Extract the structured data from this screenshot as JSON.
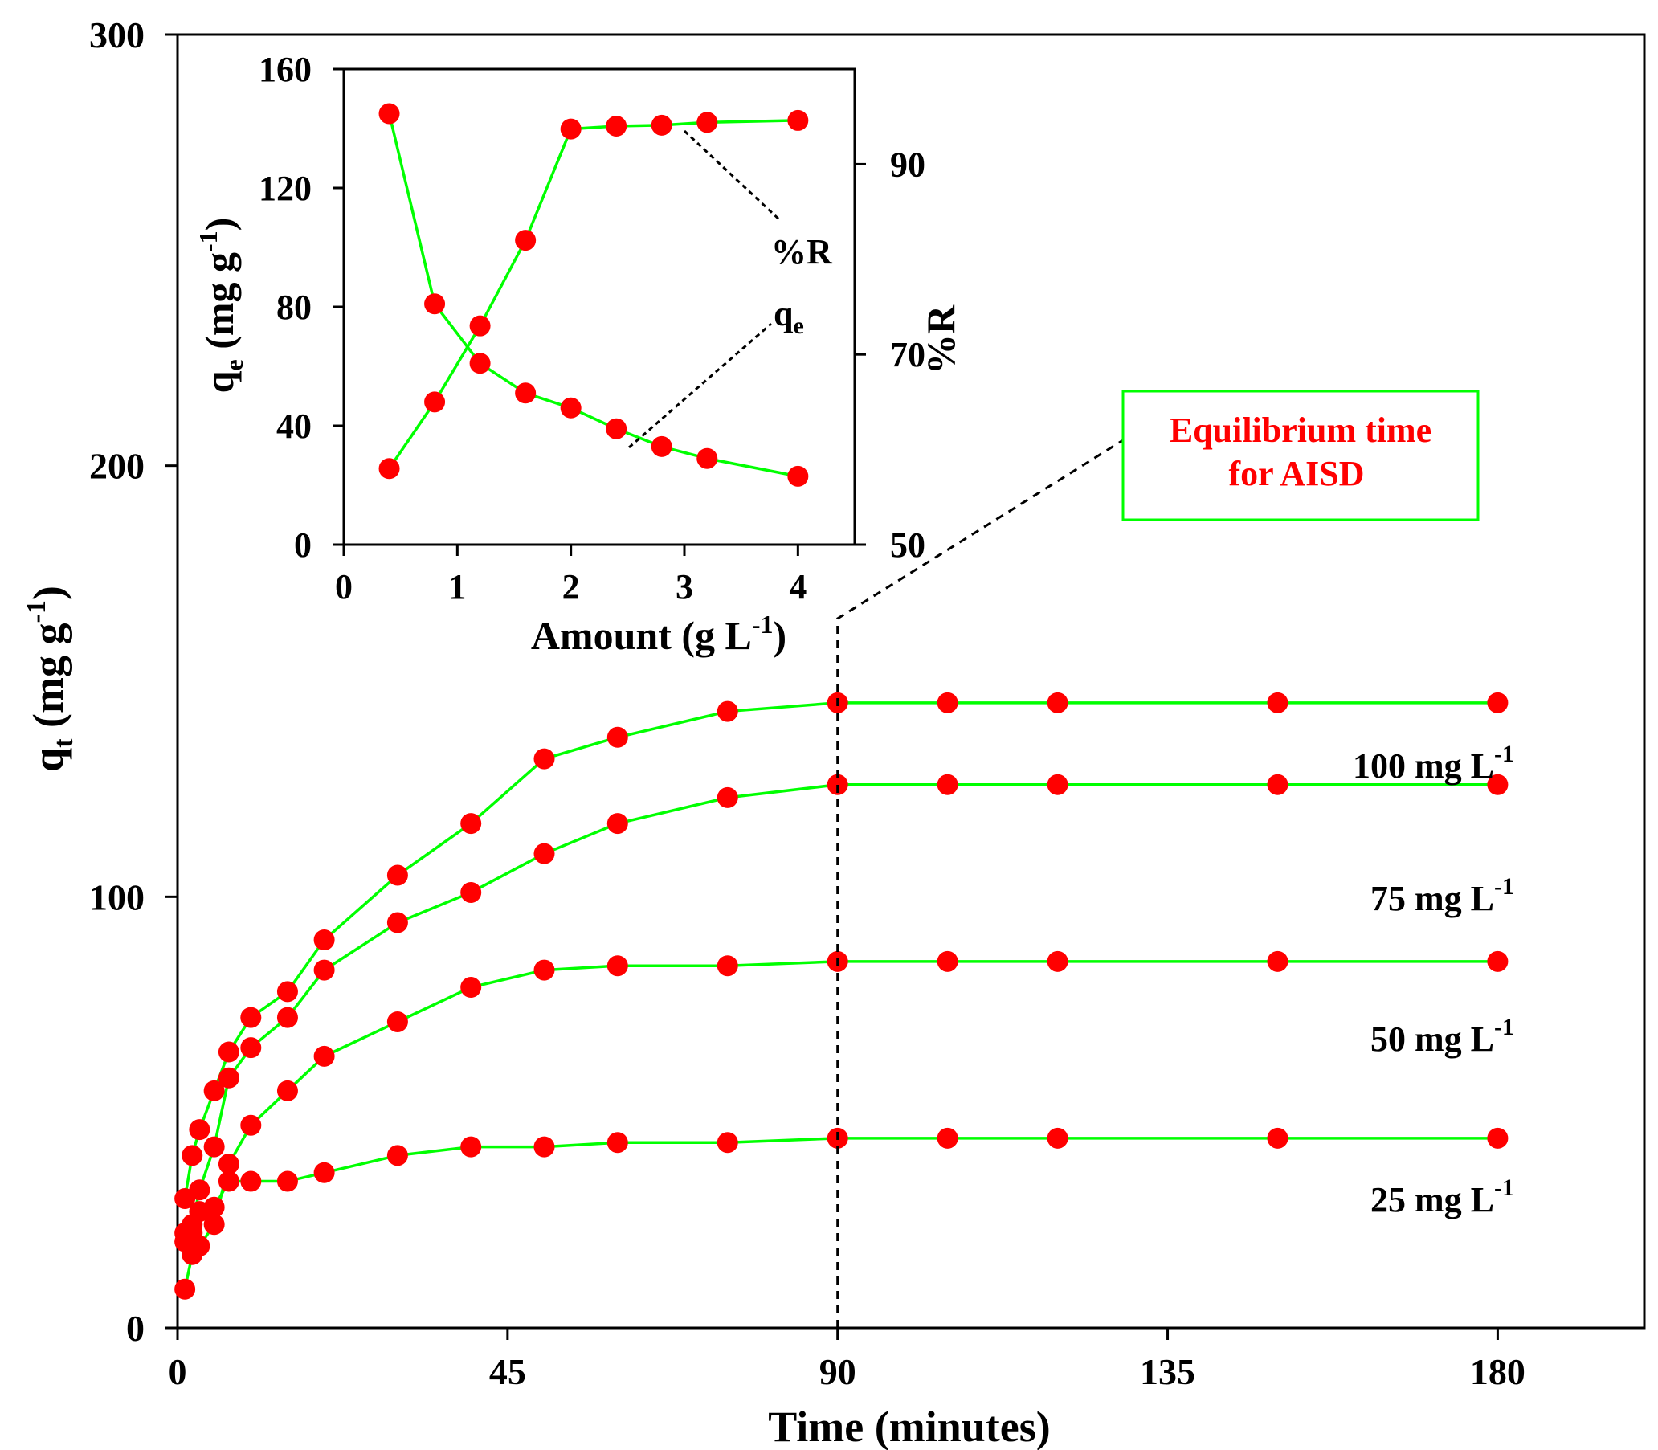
{
  "colors": {
    "line": "#00ff00",
    "marker": "#ff0000",
    "axis": "#000000",
    "annotation_text": "#ff0000",
    "annotation_box": "#00ff00"
  },
  "chart_data": [
    {
      "id": "main",
      "type": "line",
      "xlabel": "Time (minutes)",
      "ylabel": "qt (mg g-1)",
      "ylabel_parts": {
        "base": "q",
        "sub": "t",
        "rest": " (mg g",
        "sup": "-1",
        "close": ")"
      },
      "xlabel_parts": {
        "text": "Time (minutes)"
      },
      "xlim": [
        0,
        200
      ],
      "ylim": [
        0,
        300
      ],
      "xticks": [
        0,
        45,
        90,
        135,
        180
      ],
      "yticks": [
        0,
        100,
        200,
        300
      ],
      "grid": false,
      "x": [
        1,
        2,
        3,
        5,
        7,
        10,
        15,
        20,
        30,
        40,
        50,
        60,
        75,
        90,
        105,
        120,
        150,
        180
      ],
      "series": [
        {
          "name": "100 mg L-1",
          "label_base": "100 mg L",
          "label_sup": "-1",
          "values": [
            30,
            40,
            46,
            55,
            64,
            72,
            78,
            90,
            105,
            117,
            132,
            137,
            143,
            145,
            145,
            145,
            145,
            145
          ]
        },
        {
          "name": "75 mg L-1",
          "label_base": "75 mg L",
          "label_sup": "-1",
          "values": [
            22,
            24,
            32,
            42,
            58,
            65,
            72,
            83,
            94,
            101,
            110,
            117,
            123,
            126,
            126,
            126,
            126,
            126
          ]
        },
        {
          "name": "50 mg L-1",
          "label_base": "50 mg L",
          "label_sup": "-1",
          "values": [
            9,
            17,
            19,
            24,
            38,
            47,
            55,
            63,
            71,
            79,
            83,
            84,
            84,
            85,
            85,
            85,
            85,
            85
          ]
        },
        {
          "name": "25 mg L-1",
          "label_base": "25 mg L",
          "label_sup": "-1",
          "values": [
            20,
            22,
            27,
            28,
            34,
            34,
            34,
            36,
            40,
            42,
            42,
            43,
            43,
            44,
            44,
            44,
            44,
            44
          ]
        }
      ],
      "reference_line": {
        "x": 90,
        "style": "dashed"
      },
      "annotation": {
        "line1": "Equilibrium time",
        "line2": "for  AISD"
      }
    },
    {
      "id": "inset",
      "type": "line",
      "xlabel": "Amount (g L-1)",
      "xlabel_parts": {
        "base": "Amount (g L",
        "sup": "-1",
        "close": ")"
      },
      "ylabel_left": "qe (mg g-1)",
      "ylabel_left_parts": {
        "base": "q",
        "sub": "e",
        "rest": " (mg g",
        "sup": "-1",
        "close": ")"
      },
      "ylabel_right": "%R",
      "xlim": [
        0,
        4.5
      ],
      "ylim_left": [
        0,
        160
      ],
      "ylim_right": [
        50,
        100
      ],
      "xticks": [
        0,
        1,
        2,
        3,
        4
      ],
      "yticks_left": [
        0,
        40,
        80,
        120,
        160
      ],
      "yticks_right": [
        50,
        70,
        90
      ],
      "x": [
        0.4,
        0.8,
        1.2,
        1.6,
        2.0,
        2.4,
        2.8,
        3.2,
        4.0
      ],
      "series": [
        {
          "name": "qe",
          "axis": "left",
          "label_base": "q",
          "label_sub": "e",
          "values": [
            145,
            81,
            61,
            51,
            46,
            39,
            33,
            29,
            23
          ]
        },
        {
          "name": "%R",
          "axis": "right",
          "label": "%R",
          "values": [
            58,
            65,
            73,
            82,
            93.7,
            94.0,
            94.1,
            94.4,
            94.6
          ]
        }
      ]
    }
  ]
}
